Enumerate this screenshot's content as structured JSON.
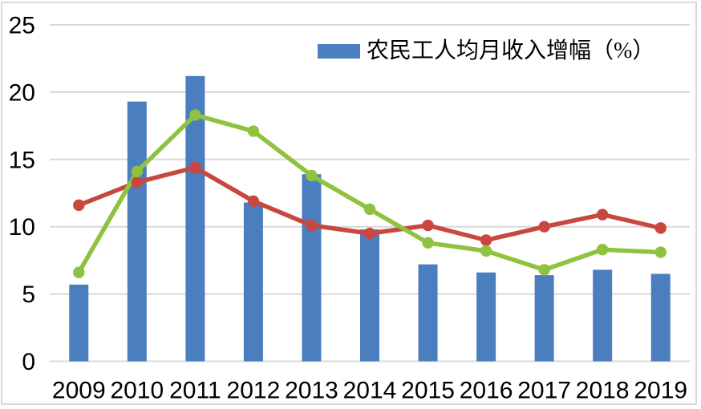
{
  "chart_data": {
    "type": "bar",
    "subtype": "bar-line combo",
    "title": "",
    "xlabel": "",
    "ylabel": "",
    "categories": [
      "2009",
      "2010",
      "2011",
      "2012",
      "2013",
      "2014",
      "2015",
      "2016",
      "2017",
      "2018",
      "2019"
    ],
    "yticks": [
      0,
      5,
      10,
      15,
      20,
      25
    ],
    "ylim": [
      0,
      25
    ],
    "grid": "horizontal light-gray gridlines at every 5 units, no vertical gridlines",
    "legend_position": "top-center, single entry (bar series only)",
    "series": [
      {
        "id": "bar-series",
        "name": "农民工人均月收入增幅（%）",
        "type": "bar",
        "color": "#4A7EBE",
        "in_legend": true,
        "values": [
          5.7,
          19.3,
          21.2,
          11.8,
          13.9,
          9.8,
          7.2,
          6.6,
          6.4,
          6.8,
          6.5
        ]
      },
      {
        "id": "red-line-series",
        "name": "",
        "type": "line",
        "color": "#C8473F",
        "in_legend": false,
        "values": [
          11.6,
          13.3,
          14.4,
          11.9,
          10.1,
          9.5,
          10.1,
          9.0,
          10.0,
          10.9,
          9.9
        ]
      },
      {
        "id": "green-line-series",
        "name": "",
        "type": "line",
        "color": "#8FC23E",
        "in_legend": false,
        "values": [
          6.6,
          14.1,
          18.3,
          17.1,
          13.8,
          11.3,
          8.8,
          8.2,
          6.8,
          8.3,
          8.1
        ]
      }
    ],
    "style": {
      "grid_color": "#D9D9D9",
      "border_color": "#D9D9D9",
      "text_color": "#000000",
      "background": "#FFFFFF"
    }
  },
  "legend": {
    "label": "农民工人均月收入增幅（%）"
  }
}
